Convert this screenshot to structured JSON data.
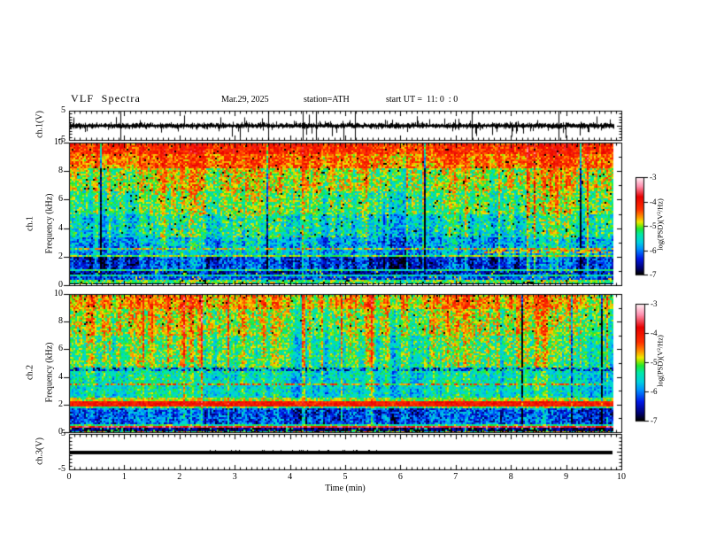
{
  "figure": {
    "background": "#ffffff"
  },
  "header": {
    "title": "VLF  Spectra",
    "date": "Mar.29, 2025",
    "station": "station=ATH",
    "start_ut": "start UT =  11: 0  : 0"
  },
  "time_axis": {
    "label": "Time (min)",
    "min": 0,
    "max": 10,
    "major_ticks": [
      "0",
      "1",
      "2",
      "3",
      "4",
      "5",
      "6",
      "7",
      "8",
      "9",
      "10"
    ],
    "minor_step": 0.1,
    "data_end_min": 9.85
  },
  "colorbar": {
    "label": "log(PSD)(V²/Hz)",
    "tick_labels": [
      "-3",
      "-4",
      "-5",
      "-6",
      "-7"
    ],
    "vmin": -7,
    "vmax": -3,
    "stops": [
      [
        0.0,
        "#000000"
      ],
      [
        0.06,
        "#000070"
      ],
      [
        0.16,
        "#0018e8"
      ],
      [
        0.26,
        "#0090ff"
      ],
      [
        0.33,
        "#00d0e0"
      ],
      [
        0.41,
        "#00e8a8"
      ],
      [
        0.47,
        "#20e830"
      ],
      [
        0.51,
        "#a0e800"
      ],
      [
        0.54,
        "#f0e800"
      ],
      [
        0.59,
        "#ff9800"
      ],
      [
        0.67,
        "#ff3000"
      ],
      [
        0.8,
        "#e80000"
      ],
      [
        0.91,
        "#ff90b0"
      ],
      [
        1.0,
        "#fff0f4"
      ]
    ]
  },
  "panels": {
    "ch1_wave": {
      "ylabel": "ch.1(V)",
      "ytick_labels": [
        "5",
        "-5"
      ],
      "ytick_values": [
        5,
        -5
      ],
      "ylim": [
        -5,
        5
      ]
    },
    "ch1_spec": {
      "ylabel_lines": [
        "ch.1",
        "Frequency (kHz)"
      ],
      "ytick_labels": [
        "10",
        "8",
        "6",
        "4",
        "2",
        "0"
      ],
      "ytick_values": [
        10,
        8,
        6,
        4,
        2,
        0
      ],
      "ylim": [
        0,
        10
      ]
    },
    "ch2_spec": {
      "ylabel_lines": [
        "ch.2",
        "Frequency (kHz)"
      ],
      "ytick_labels": [
        "10",
        "8",
        "6",
        "4",
        "2",
        "0"
      ],
      "ytick_values": [
        10,
        8,
        6,
        4,
        2,
        0
      ],
      "ylim": [
        0,
        10
      ]
    },
    "ch3_wave": {
      "ylabel": "ch.3(V)",
      "ytick_labels": [
        "5",
        "-5"
      ],
      "ytick_values": [
        5,
        -5
      ],
      "ylim": [
        -5,
        5
      ]
    }
  },
  "chart_data": [
    {
      "type": "line",
      "name": "ch1_waveform",
      "xlabel": "Time (min)",
      "ylabel": "ch.1(V)",
      "xlim": [
        0,
        10
      ],
      "ylim": [
        -5,
        5
      ],
      "description": "continuous broadband noise around 0 V with dense impulsive spikes, many reaching the ±5 V limits",
      "gen": {
        "seed": 7,
        "base": 0.3,
        "var": 0.5,
        "spike_prob": 0.13,
        "spike_mean": 1.4,
        "tall_prob": 0.012,
        "clip": 5.2
      }
    },
    {
      "type": "heatmap",
      "name": "ch1_spectrogram",
      "xlabel": "Time (min)",
      "ylabel": "Frequency (kHz)",
      "xlim": [
        0,
        10
      ],
      "ylim": [
        0,
        10
      ],
      "zlim": [
        -7,
        -3
      ],
      "zlabel": "log(PSD)(V²/Hz)",
      "description": "red/orange above ~8 kHz, yellow-green 5-8 kHz with vertical sferic streaks, cyan 3-5 kHz, strong blue band 1.2-2 kHz, layered green/dark bands below 1 kHz, dashed orange-brown line near 2.4 kHz after 7.5 min",
      "gen": {
        "seed": 101,
        "bands": [
          {
            "f0": 0.0,
            "f1": 0.18,
            "v": -6.9,
            "n": 0.3,
            "cm": 0.1,
            "spb": 0.1,
            "spbv": -4.9
          },
          {
            "f0": 0.18,
            "f1": 0.42,
            "v": -5.15,
            "n": 0.45,
            "cm": 0.2,
            "spd": 0.05
          },
          {
            "f0": 0.42,
            "f1": 0.62,
            "v": -6.2,
            "n": 0.5,
            "cm": 0.15,
            "spb": 0.06,
            "spbv": -4.7
          },
          {
            "f0": 0.62,
            "f1": 0.78,
            "v": -5.5,
            "n": 0.45,
            "cm": 0.2
          },
          {
            "f0": 0.78,
            "f1": 0.98,
            "v": -6.5,
            "n": 0.55,
            "cm": 0.2,
            "spb": 0.05,
            "spbv": -5.0
          },
          {
            "f0": 0.98,
            "f1": 1.18,
            "v": -5.35,
            "n": 0.4,
            "cm": 0.3
          },
          {
            "f0": 1.18,
            "f1": 1.95,
            "v": -6.3,
            "n": 0.5,
            "cm": 1.1
          },
          {
            "f0": 1.95,
            "f1": 2.18,
            "v": -5.05,
            "n": 0.35,
            "cm": 0.4
          },
          {
            "f0": 2.18,
            "f1": 2.52,
            "v": -5.8,
            "n": 0.5,
            "cm": 0.8
          },
          {
            "f0": 2.52,
            "f1": 2.66,
            "v": -5.1,
            "n": 0.6,
            "cm": 0.5,
            "spb": 0.25,
            "spbv": -4.5
          },
          {
            "f0": 2.66,
            "f1": 3.35,
            "v": -5.8,
            "n": 0.55,
            "cm": 0.9
          },
          {
            "f0": 3.35,
            "f1": 5.0,
            "v": -5.45,
            "n": 0.55,
            "cm": 0.9,
            "spd": 0.02
          },
          {
            "f0": 5.0,
            "f1": 6.6,
            "v": -5.15,
            "n": 0.5,
            "cm": 0.85,
            "spd": 0.02
          },
          {
            "f0": 6.6,
            "f1": 8.2,
            "v": -4.9,
            "n": 0.5,
            "cm": 0.8,
            "spd": 0.015
          },
          {
            "f0": 8.2,
            "f1": 9.3,
            "v": -4.45,
            "n": 0.45,
            "cm": 0.6,
            "spd": 0.02
          },
          {
            "f0": 9.3,
            "f1": 10.01,
            "v": -4.2,
            "n": 0.4,
            "cm": 0.5,
            "spd": 0.02
          }
        ],
        "patches": [
          {
            "x0": 7.5,
            "x1": 9.85,
            "f0": 2.3,
            "f1": 2.55,
            "v": -4.7,
            "p": 0.6
          }
        ]
      }
    },
    {
      "type": "heatmap",
      "name": "ch2_spectrogram",
      "xlabel": "Time (min)",
      "ylabel": "Frequency (kHz)",
      "xlim": [
        0,
        10
      ],
      "ylim": [
        0,
        10
      ],
      "zlim": [
        -7,
        -3
      ],
      "zlabel": "log(PSD)(V²/Hz)",
      "description": "green 5-10 kHz with orange/red vertical streaks, dark dashed line ~4.6 kHz, red dashed line ~3.5 kHz, solid bright red line ~2-2.3 kHz, blue band 0.7-1.8 kHz, pale bright line ~0.45 kHz, dark band near 0",
      "gen": {
        "seed": 202,
        "bands": [
          {
            "f0": 0.0,
            "f1": 0.14,
            "v": -5.0,
            "n": 0.7,
            "cm": 0.2,
            "spd": 0.15
          },
          {
            "f0": 0.14,
            "f1": 0.36,
            "v": -6.75,
            "n": 0.4,
            "cm": 0.1,
            "spb": 0.08,
            "spbv": -5.2
          },
          {
            "f0": 0.36,
            "f1": 0.5,
            "v": -3.7,
            "n": 0.35,
            "cm": 0.1
          },
          {
            "f0": 0.5,
            "f1": 0.68,
            "v": -5.3,
            "n": 0.4,
            "cm": 0.2
          },
          {
            "f0": 0.68,
            "f1": 1.78,
            "v": -6.2,
            "n": 0.55,
            "cm": 0.7
          },
          {
            "f0": 1.78,
            "f1": 1.97,
            "v": -5.2,
            "n": 0.45,
            "cm": 0.4
          },
          {
            "f0": 1.97,
            "f1": 2.3,
            "v": -4.05,
            "n": 0.3,
            "cm": 0.25
          },
          {
            "f0": 2.3,
            "f1": 2.6,
            "v": -4.95,
            "n": 0.4,
            "cm": 0.4
          },
          {
            "f0": 2.6,
            "f1": 3.45,
            "v": -5.55,
            "n": 0.45,
            "cm": 0.7
          },
          {
            "f0": 3.45,
            "f1": 3.62,
            "v": -4.45,
            "n": 0.5,
            "cm": 0.4,
            "gapp": 0.35,
            "gapv": -5.4
          },
          {
            "f0": 3.62,
            "f1": 4.5,
            "v": -5.5,
            "n": 0.45,
            "cm": 0.7
          },
          {
            "f0": 4.5,
            "f1": 4.72,
            "v": -6.3,
            "n": 0.6,
            "cm": 0.4,
            "gapp": 0.4,
            "gapv": -5.3
          },
          {
            "f0": 4.72,
            "f1": 7.0,
            "v": -5.2,
            "n": 0.5,
            "cm": 0.95
          },
          {
            "f0": 7.0,
            "f1": 9.0,
            "v": -4.95,
            "n": 0.5,
            "cm": 0.95,
            "spd": 0.015
          },
          {
            "f0": 9.0,
            "f1": 10.01,
            "v": -4.65,
            "n": 0.45,
            "cm": 0.8,
            "spd": 0.02
          }
        ],
        "patches": []
      }
    },
    {
      "type": "line",
      "name": "ch3_waveform",
      "xlabel": "Time (min)",
      "ylabel": "ch.3(V)",
      "xlim": [
        0,
        10
      ],
      "ylim": [
        -5,
        5
      ],
      "description": "flat thick trace at 0 V ending near 9.8 min",
      "gen": {
        "seed": 9,
        "value": 0,
        "x_end": 9.82,
        "fuzz": {
          "x0": 2.5,
          "x1": 5.6,
          "prob": 0.15
        }
      }
    }
  ]
}
